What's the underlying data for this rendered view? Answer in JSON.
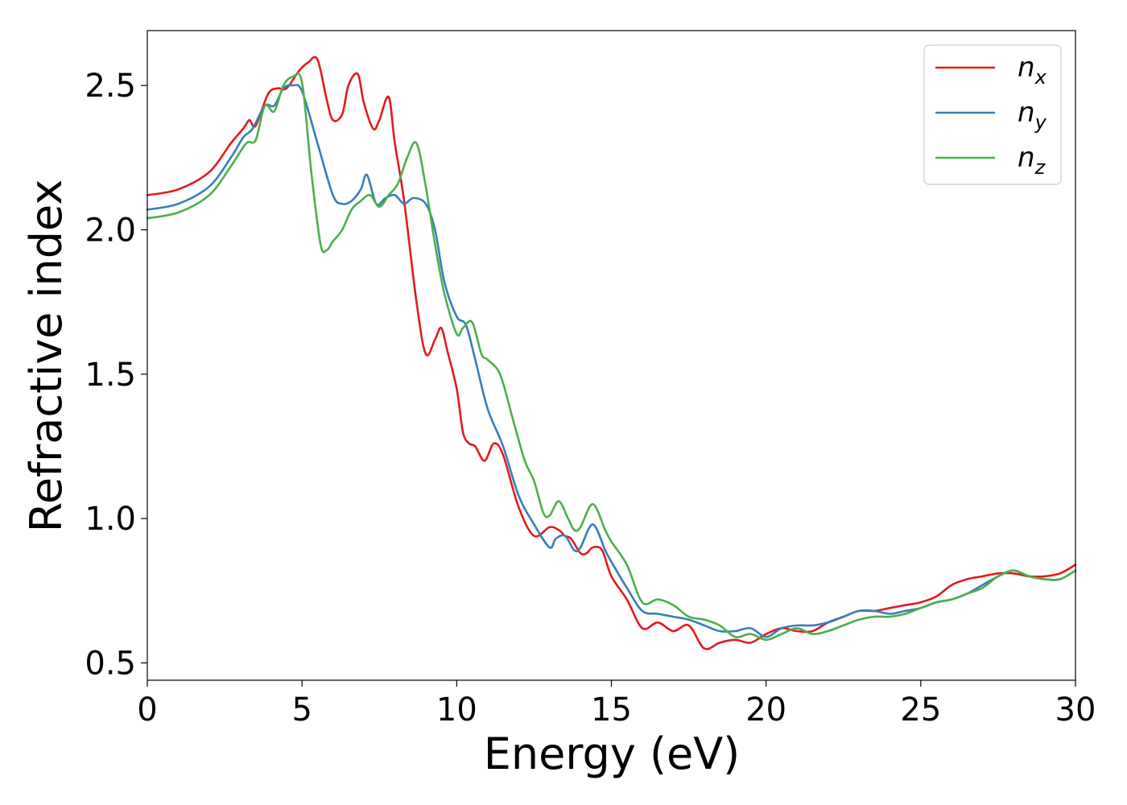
{
  "chart_data": {
    "type": "line",
    "xlabel": "Energy (eV)",
    "ylabel": "Refractive index",
    "xlim": [
      0,
      30
    ],
    "ylim": [
      0.44,
      2.69
    ],
    "xticks": [
      "0",
      "5",
      "10",
      "15",
      "20",
      "25",
      "30"
    ],
    "yticks": [
      "0.5",
      "1.0",
      "1.5",
      "2.0",
      "2.5"
    ],
    "grid": false,
    "legend_position": "top-right",
    "series": [
      {
        "name": "n",
        "subscript": "x",
        "color": "#e41a1c",
        "x": [
          0,
          1,
          2,
          2.7,
          3.1,
          3.3,
          3.5,
          3.9,
          4.2,
          4.5,
          4.9,
          5.2,
          5.5,
          5.8,
          6.0,
          6.3,
          6.5,
          6.8,
          7.0,
          7.3,
          7.5,
          7.8,
          8.0,
          8.3,
          8.7,
          9.0,
          9.3,
          9.5,
          9.7,
          10.0,
          10.2,
          10.4,
          10.6,
          10.9,
          11.2,
          11.5,
          12.0,
          12.5,
          13.0,
          13.3,
          13.5,
          13.7,
          14.0,
          14.2,
          14.4,
          14.7,
          15.0,
          15.5,
          16.0,
          16.5,
          17.0,
          17.5,
          18.0,
          18.5,
          19.0,
          19.5,
          20.0,
          20.5,
          21.0,
          21.5,
          22.0,
          22.5,
          23.0,
          23.5,
          24.0,
          24.5,
          25.0,
          25.5,
          26.0,
          26.5,
          27.0,
          27.5,
          28.0,
          28.5,
          29.0,
          29.5,
          30.0
        ],
        "values": [
          2.12,
          2.14,
          2.2,
          2.3,
          2.35,
          2.38,
          2.36,
          2.47,
          2.49,
          2.49,
          2.55,
          2.58,
          2.59,
          2.45,
          2.38,
          2.4,
          2.5,
          2.54,
          2.44,
          2.35,
          2.38,
          2.46,
          2.3,
          2.1,
          1.75,
          1.57,
          1.62,
          1.66,
          1.58,
          1.45,
          1.3,
          1.26,
          1.25,
          1.2,
          1.26,
          1.22,
          1.04,
          0.94,
          0.97,
          0.96,
          0.94,
          0.93,
          0.88,
          0.88,
          0.9,
          0.89,
          0.8,
          0.72,
          0.62,
          0.64,
          0.61,
          0.63,
          0.55,
          0.57,
          0.58,
          0.57,
          0.6,
          0.62,
          0.61,
          0.61,
          0.64,
          0.66,
          0.68,
          0.68,
          0.69,
          0.7,
          0.71,
          0.73,
          0.77,
          0.79,
          0.8,
          0.81,
          0.81,
          0.8,
          0.8,
          0.81,
          0.84
        ]
      },
      {
        "name": "n",
        "subscript": "y",
        "color": "#377eb8",
        "x": [
          0,
          1,
          2,
          2.7,
          3.1,
          3.4,
          3.8,
          4.1,
          4.4,
          4.7,
          5.0,
          5.5,
          6.0,
          6.3,
          6.6,
          6.9,
          7.1,
          7.4,
          7.7,
          8.0,
          8.3,
          8.6,
          9.0,
          9.3,
          9.6,
          10.0,
          10.3,
          10.6,
          11.0,
          11.5,
          12.0,
          12.5,
          13.0,
          13.2,
          13.5,
          13.8,
          14.0,
          14.4,
          14.8,
          15.0,
          15.5,
          16.0,
          16.5,
          17.0,
          17.5,
          18.0,
          18.5,
          19.0,
          19.5,
          20.0,
          20.5,
          21.0,
          21.5,
          22.0,
          22.5,
          23.0,
          23.5,
          24.0,
          24.5,
          25.0,
          25.5,
          26.0,
          26.5,
          27.0,
          27.5,
          28.0,
          28.5,
          29.0,
          29.5,
          30.0
        ],
        "values": [
          2.07,
          2.09,
          2.15,
          2.25,
          2.32,
          2.35,
          2.43,
          2.43,
          2.49,
          2.5,
          2.48,
          2.3,
          2.12,
          2.09,
          2.1,
          2.14,
          2.19,
          2.09,
          2.11,
          2.12,
          2.09,
          2.11,
          2.09,
          2.0,
          1.82,
          1.7,
          1.67,
          1.55,
          1.38,
          1.25,
          1.08,
          0.98,
          0.9,
          0.93,
          0.94,
          0.89,
          0.9,
          0.98,
          0.89,
          0.85,
          0.76,
          0.68,
          0.67,
          0.66,
          0.65,
          0.63,
          0.61,
          0.61,
          0.62,
          0.59,
          0.62,
          0.63,
          0.63,
          0.64,
          0.66,
          0.68,
          0.68,
          0.67,
          0.68,
          0.69,
          0.71,
          0.72,
          0.74,
          0.77,
          0.8,
          0.82,
          0.8,
          0.79,
          0.79,
          0.82
        ]
      },
      {
        "name": "n",
        "subscript": "z",
        "color": "#4daf4a",
        "x": [
          0,
          1,
          2,
          2.7,
          3.2,
          3.5,
          3.8,
          4.1,
          4.4,
          4.7,
          5.0,
          5.3,
          5.6,
          5.8,
          6.0,
          6.3,
          6.6,
          6.9,
          7.2,
          7.5,
          7.8,
          8.1,
          8.4,
          8.7,
          9.0,
          9.3,
          9.6,
          10.0,
          10.2,
          10.5,
          10.8,
          11.0,
          11.4,
          11.8,
          12.2,
          12.5,
          12.8,
          13.0,
          13.3,
          13.6,
          13.8,
          14.0,
          14.4,
          14.8,
          15.0,
          15.5,
          16.0,
          16.5,
          17.0,
          17.5,
          18.0,
          18.5,
          19.0,
          19.5,
          20.0,
          20.5,
          21.0,
          21.5,
          22.0,
          22.5,
          23.0,
          23.5,
          24.0,
          24.5,
          25.0,
          25.5,
          26.0,
          26.5,
          27.0,
          27.5,
          28.0,
          28.5,
          29.0,
          29.5,
          30.0
        ],
        "values": [
          2.04,
          2.06,
          2.12,
          2.22,
          2.3,
          2.31,
          2.43,
          2.41,
          2.5,
          2.53,
          2.51,
          2.2,
          1.95,
          1.93,
          1.96,
          2.0,
          2.07,
          2.1,
          2.12,
          2.08,
          2.12,
          2.16,
          2.25,
          2.3,
          2.15,
          1.95,
          1.78,
          1.64,
          1.66,
          1.68,
          1.57,
          1.55,
          1.5,
          1.35,
          1.2,
          1.13,
          1.02,
          1.01,
          1.06,
          1.0,
          0.96,
          0.97,
          1.05,
          0.96,
          0.92,
          0.84,
          0.71,
          0.72,
          0.7,
          0.66,
          0.65,
          0.63,
          0.59,
          0.6,
          0.58,
          0.6,
          0.62,
          0.6,
          0.61,
          0.63,
          0.65,
          0.66,
          0.66,
          0.67,
          0.69,
          0.71,
          0.72,
          0.74,
          0.76,
          0.8,
          0.82,
          0.8,
          0.79,
          0.79,
          0.82
        ]
      }
    ]
  }
}
